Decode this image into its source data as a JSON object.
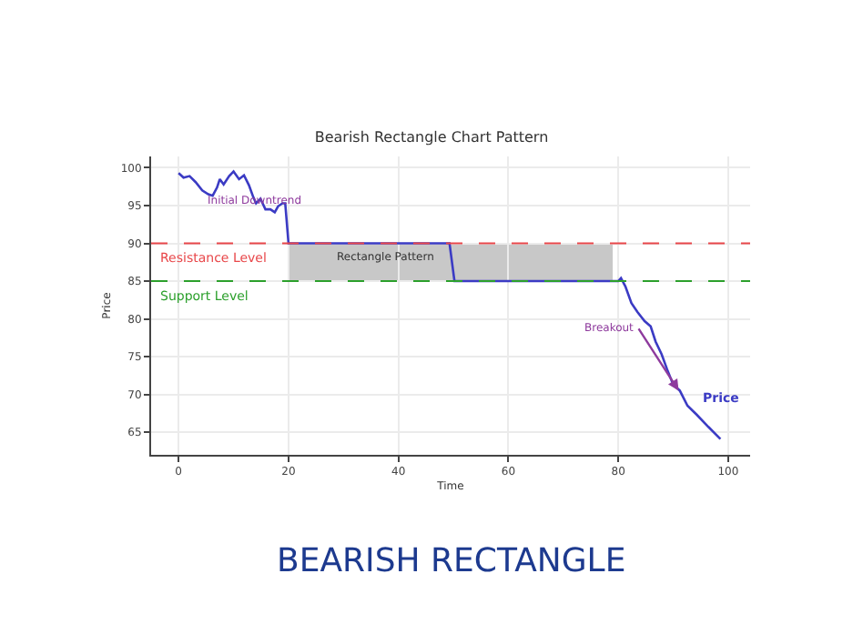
{
  "chart_data": {
    "type": "line",
    "title": "Bearish Rectangle Chart Pattern",
    "xlabel": "Time",
    "ylabel": "Price",
    "xlim": [
      -5,
      104
    ],
    "ylim": [
      62,
      101.5
    ],
    "xticks": [
      0,
      20,
      40,
      60,
      80,
      100
    ],
    "yticks": [
      65,
      70,
      75,
      80,
      85,
      90,
      95,
      100
    ],
    "grid": true,
    "legend": false,
    "series": [
      {
        "name": "Price",
        "color": "#3b3bc4",
        "x": [
          0,
          0.9,
          2,
          3.1,
          4.3,
          5.4,
          6.2,
          7,
          7.5,
          8.2,
          9.2,
          10,
          11,
          11.9,
          12.8,
          13.6,
          14.1,
          14.9,
          15.8,
          16.7,
          17.5,
          18.1,
          18.9,
          19.4,
          20,
          49.3,
          50.2,
          80,
          80.5,
          81.3,
          82.4,
          83.5,
          84.8,
          85.9,
          86.8,
          87.9,
          88.9,
          90,
          91.2,
          92.6,
          94.3,
          96.4,
          98.6
        ],
        "values": [
          99.3,
          98.7,
          98.9,
          98.1,
          97,
          96.5,
          96.3,
          97.4,
          98.5,
          97.8,
          98.9,
          99.5,
          98.5,
          99,
          97.7,
          96.1,
          95.3,
          95.9,
          94.5,
          94.5,
          94.1,
          94.9,
          95.3,
          95.3,
          90,
          90,
          85,
          85,
          85.4,
          84.3,
          82.1,
          80.9,
          79.7,
          79,
          77,
          75.3,
          73.3,
          71.3,
          70.5,
          68.5,
          67.3,
          65.7,
          64.1
        ]
      }
    ],
    "bands": [
      {
        "axis": "x",
        "from": 20,
        "to": 79,
        "label": "Rectangle Pattern",
        "color": "#c8c8c8"
      }
    ],
    "ref_lines": [
      {
        "axis": "y",
        "value": 90,
        "label": "Resistance Level",
        "color": "#e8474a",
        "line_style": "dashed"
      },
      {
        "axis": "y",
        "value": 85,
        "label": "Support Level",
        "color": "#2ca02c",
        "line_style": "dashed"
      }
    ],
    "annotations": [
      {
        "text": "Initial Downtrend",
        "x": 14,
        "y": 95.7
      },
      {
        "text": "Breakout",
        "x": 91,
        "y": 70.5
      },
      "BEARISH RECTANGLE"
    ]
  }
}
